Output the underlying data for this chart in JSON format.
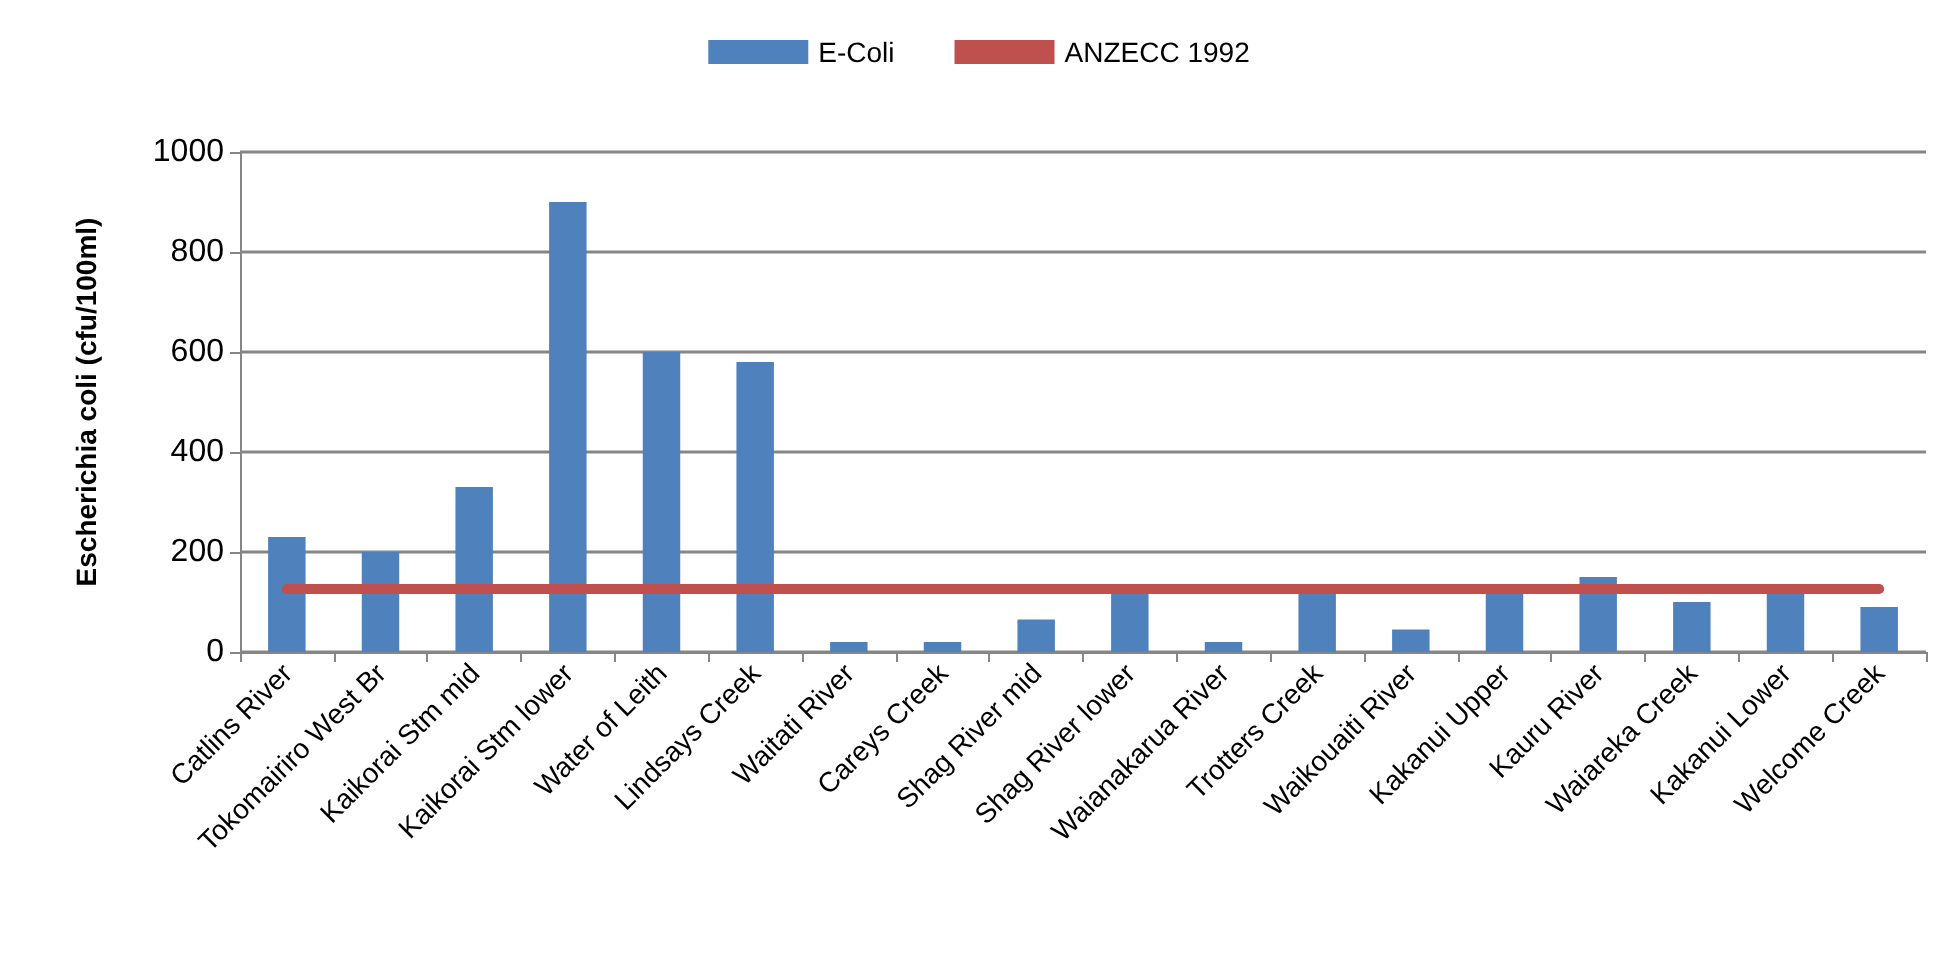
{
  "chart_data": {
    "type": "bar",
    "ylabel": "Escherichia coli (cfu/100ml)",
    "categories": [
      "Catlins River",
      "Tokomairiro West Br",
      "Kaikorai Stm mid",
      "Kaikorai Stm lower",
      "Water of Leith",
      "Lindsays Creek",
      "Waitati River",
      "Careys Creek",
      "Shag River mid",
      "Shag River lower",
      "Waianakarua River",
      "Trotters Creek",
      "Waikouaiti River",
      "Kakanui Upper",
      "Kauru River",
      "Waiareka Creek",
      "Kakanui Lower",
      "Welcome Creek"
    ],
    "series": [
      {
        "name": "E-Coli",
        "color": "#4f81bd",
        "values": [
          230,
          200,
          330,
          900,
          600,
          580,
          20,
          20,
          65,
          125,
          20,
          125,
          45,
          125,
          150,
          100,
          125,
          90
        ]
      },
      {
        "name": "ANZECC 1992",
        "type": "line",
        "color": "#c0504d",
        "marker": "none",
        "values": [
          126,
          126,
          126,
          126,
          126,
          126,
          126,
          126,
          126,
          126,
          126,
          126,
          126,
          126,
          126,
          126,
          126,
          126
        ]
      }
    ],
    "ylim": [
      0,
      1000
    ],
    "yticks": [
      0,
      200,
      400,
      600,
      800,
      1000
    ],
    "grid": "y",
    "legend": "top"
  }
}
